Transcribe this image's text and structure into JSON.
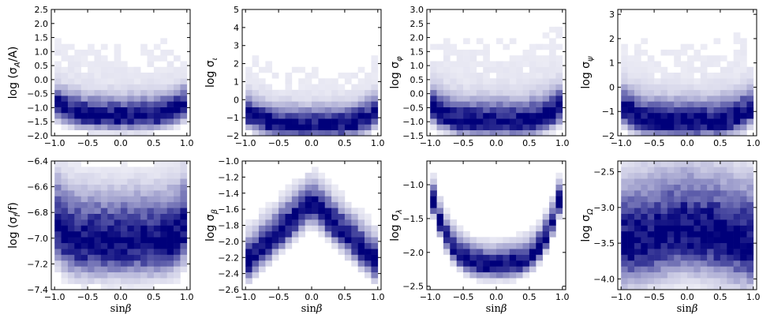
{
  "chart_data": [
    {
      "type": "heatmap",
      "ylabel": "log (σ_A/A)",
      "ylabel_main": "log (σ",
      "ylabel_sub": "A",
      "ylabel_tail": "/A)",
      "xlim": [
        -1.05,
        1.05
      ],
      "ylim": [
        -2.0,
        2.5
      ],
      "xticks": [
        -1.0,
        -0.5,
        0.0,
        0.5,
        1.0
      ],
      "xtick_labels": [
        "−1.0",
        "−0.5",
        "0.0",
        "0.5",
        "1.0"
      ],
      "yticks": [
        -2.0,
        -1.5,
        -1.0,
        -0.5,
        0.0,
        0.5,
        1.0,
        1.5,
        2.0,
        2.5
      ],
      "ytick_labels": [
        "−2.0",
        "−1.5",
        "−1.0",
        "−0.5",
        "0.0",
        "0.5",
        "1.0",
        "1.5",
        "2.0",
        "2.5"
      ],
      "density": {
        "shape": "u",
        "center": -1.35,
        "edge_rise": 0.35,
        "width": 0.4,
        "tail": 3.0
      }
    },
    {
      "type": "heatmap",
      "ylabel": "log σ_ι",
      "ylabel_main": "log σ",
      "ylabel_sub": "ι",
      "ylabel_tail": "",
      "xlim": [
        -1.05,
        1.05
      ],
      "ylim": [
        -2,
        5
      ],
      "xticks": [
        -1.0,
        -0.5,
        0.0,
        0.5,
        1.0
      ],
      "xtick_labels": [
        "−1.0",
        "−0.5",
        "0.0",
        "0.5",
        "1.0"
      ],
      "yticks": [
        -2,
        -1,
        0,
        1,
        2,
        3,
        4,
        5
      ],
      "ytick_labels": [
        "−2",
        "−1",
        "0",
        "1",
        "2",
        "3",
        "4",
        "5"
      ],
      "density": {
        "shape": "u",
        "center": -1.5,
        "edge_rise": 0.6,
        "width": 0.6,
        "tail": 4.0
      }
    },
    {
      "type": "heatmap",
      "ylabel": "log σ_φ",
      "ylabel_main": "log σ",
      "ylabel_sub": "φ",
      "ylabel_tail": "",
      "xlim": [
        -1.05,
        1.05
      ],
      "ylim": [
        -1.5,
        3.0
      ],
      "xticks": [
        -1.0,
        -0.5,
        0.0,
        0.5,
        1.0
      ],
      "xtick_labels": [
        "−1.0",
        "−0.5",
        "0.0",
        "0.5",
        "1.0"
      ],
      "yticks": [
        -1.5,
        -1.0,
        -0.5,
        0.0,
        0.5,
        1.0,
        1.5,
        2.0,
        2.5,
        3.0
      ],
      "ytick_labels": [
        "−1.5",
        "−1.0",
        "−0.5",
        "0.0",
        "0.5",
        "1.0",
        "1.5",
        "2.0",
        "2.5",
        "3.0"
      ],
      "density": {
        "shape": "u",
        "center": -1.05,
        "edge_rise": 0.45,
        "width": 0.45,
        "tail": 3.6
      }
    },
    {
      "type": "heatmap",
      "ylabel": "log σ_ψ",
      "ylabel_main": "log σ",
      "ylabel_sub": "ψ",
      "ylabel_tail": "",
      "xlim": [
        -1.05,
        1.05
      ],
      "ylim": [
        -2,
        3.2
      ],
      "xticks": [
        -1.0,
        -0.5,
        0.0,
        0.5,
        1.0
      ],
      "xtick_labels": [
        "−1.0",
        "−0.5",
        "0.0",
        "0.5",
        "1.0"
      ],
      "yticks": [
        -2,
        -1,
        0,
        1,
        2,
        3
      ],
      "ytick_labels": [
        "−2",
        "−1",
        "0",
        "1",
        "2",
        "3"
      ],
      "density": {
        "shape": "u",
        "center": -1.5,
        "edge_rise": 0.5,
        "width": 0.55,
        "tail": 4.0
      }
    },
    {
      "type": "heatmap",
      "ylabel": "log (σ_f/f)",
      "ylabel_main": "log (σ",
      "ylabel_sub": "f",
      "ylabel_tail": "/f)",
      "xlabel": "sinβ",
      "xlim": [
        -1.05,
        1.05
      ],
      "ylim": [
        -7.4,
        -6.4
      ],
      "xticks": [
        -1.0,
        -0.5,
        0.0,
        0.5,
        1.0
      ],
      "xtick_labels": [
        "−1.0",
        "−0.5",
        "0.0",
        "0.5",
        "1.0"
      ],
      "yticks": [
        -7.4,
        -7.2,
        -7.0,
        -6.8,
        -6.6,
        -6.4
      ],
      "ytick_labels": [
        "−7.4",
        "−7.2",
        "−7.0",
        "−6.8",
        "−6.6",
        "−6.4"
      ],
      "density": {
        "shape": "band",
        "center": -7.05,
        "edge_rise": 0.15,
        "width": 0.22,
        "tail": 0.4
      }
    },
    {
      "type": "heatmap",
      "ylabel": "log σ_β",
      "ylabel_main": "log σ",
      "ylabel_sub": "β",
      "ylabel_tail": "",
      "xlabel": "sinβ",
      "xlim": [
        -1.05,
        1.05
      ],
      "ylim": [
        -2.6,
        -1.0
      ],
      "xticks": [
        -1.0,
        -0.5,
        0.0,
        0.5,
        1.0
      ],
      "xtick_labels": [
        "−1.0",
        "−0.5",
        "0.0",
        "0.5",
        "1.0"
      ],
      "yticks": [
        -2.6,
        -2.4,
        -2.2,
        -2.0,
        -1.8,
        -1.6,
        -1.4,
        -1.2,
        -1.0
      ],
      "ytick_labels": [
        "−2.6",
        "−2.4",
        "−2.2",
        "−2.0",
        "−1.8",
        "−1.6",
        "−1.4",
        "−1.2",
        "−1.0"
      ],
      "density": {
        "shape": "peak",
        "center": -1.55,
        "edge_rise": -0.75,
        "width": 0.18,
        "tail": 0.3
      }
    },
    {
      "type": "heatmap",
      "ylabel": "log σ_λ",
      "ylabel_main": "log σ",
      "ylabel_sub": "λ",
      "ylabel_tail": "",
      "xlabel": "sinβ",
      "xlim": [
        -1.05,
        1.05
      ],
      "ylim": [
        -2.55,
        -0.65
      ],
      "xticks": [
        -1.0,
        -0.5,
        0.0,
        0.5,
        1.0
      ],
      "xtick_labels": [
        "−1.0",
        "−0.5",
        "0.0",
        "0.5",
        "1.0"
      ],
      "yticks": [
        -2.5,
        -2.0,
        -1.5,
        -1.0
      ],
      "ytick_labels": [
        "−2.5",
        "−2.0",
        "−1.5",
        "−1.0"
      ],
      "density": {
        "shape": "u",
        "center": -2.2,
        "edge_rise": 0.9,
        "width": 0.16,
        "tail": 0.2
      }
    },
    {
      "type": "heatmap",
      "ylabel": "log σ_Ω",
      "ylabel_main": "log σ",
      "ylabel_sub": "Ω",
      "ylabel_tail": "",
      "xlabel": "sinβ",
      "xlim": [
        -1.05,
        1.05
      ],
      "ylim": [
        -4.15,
        -2.35
      ],
      "xticks": [
        -1.0,
        -0.5,
        0.0,
        0.5,
        1.0
      ],
      "xtick_labels": [
        "−1.0",
        "−0.5",
        "0.0",
        "0.5",
        "1.0"
      ],
      "yticks": [
        -4.0,
        -3.5,
        -3.0,
        -2.5
      ],
      "ytick_labels": [
        "−4.0",
        "−3.5",
        "−3.0",
        "−2.5"
      ],
      "density": {
        "shape": "peak",
        "center": -3.35,
        "edge_rise": -0.2,
        "width": 0.5,
        "tail": 0.5
      }
    }
  ],
  "colors": {
    "cmap_low": "#ffffff",
    "cmap_high": "#00007a",
    "axes": "#000000"
  },
  "grid": false,
  "xlabel_shared": "sinβ",
  "xlabel_main": "sin",
  "xlabel_greek": "β"
}
